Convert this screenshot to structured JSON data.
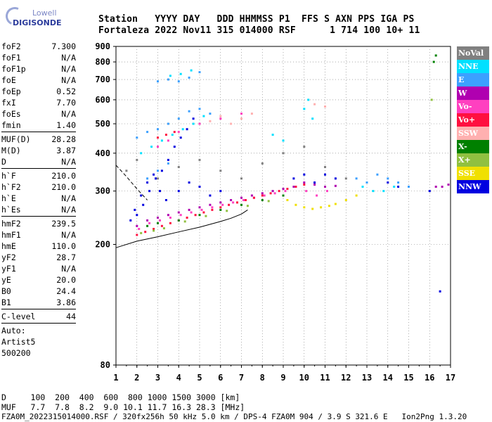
{
  "logo": {
    "line1": "Lowell",
    "line2": "DIGISONDE"
  },
  "header": {
    "line1": "Station   YYYY DAY   DDD HHMMSS P1  FFS S AXN PPS IGA PS",
    "line2": "Fortaleza 2022 Nov11 315 014000 RSF      1 714 100 10+ 11"
  },
  "params": {
    "group1": [
      {
        "k": "foF2",
        "v": "7.300"
      },
      {
        "k": "foF1",
        "v": "N/A"
      },
      {
        "k": "foF1p",
        "v": "N/A"
      },
      {
        "k": "foE",
        "v": "N/A"
      },
      {
        "k": "foEp",
        "v": "0.52"
      },
      {
        "k": "fxI",
        "v": "7.70"
      },
      {
        "k": "foEs",
        "v": "N/A"
      },
      {
        "k": "fmin",
        "v": "1.40"
      }
    ],
    "group2": [
      {
        "k": "MUF(D)",
        "v": "28.28"
      },
      {
        "k": "M(D)",
        "v": "3.87"
      },
      {
        "k": "D",
        "v": "N/A"
      }
    ],
    "group3": [
      {
        "k": "h`F",
        "v": "210.0"
      },
      {
        "k": "h`F2",
        "v": "210.0"
      },
      {
        "k": "h`E",
        "v": "N/A"
      },
      {
        "k": "h`Es",
        "v": "N/A"
      }
    ],
    "group4": [
      {
        "k": "hmF2",
        "v": "239.5"
      },
      {
        "k": "hmF1",
        "v": "N/A"
      },
      {
        "k": "hmE",
        "v": "110.0"
      },
      {
        "k": "yF2",
        "v": "28.7"
      },
      {
        "k": "yF1",
        "v": "N/A"
      },
      {
        "k": "yE",
        "v": "20.0"
      },
      {
        "k": "B0",
        "v": "24.4"
      },
      {
        "k": "B1",
        "v": "3.86"
      }
    ],
    "group5": [
      {
        "k": "C-level",
        "v": "44"
      }
    ],
    "auto_label": "Auto:",
    "artist": "Artist5",
    "code": "500200"
  },
  "footer": {
    "d_row": "D     100  200  400  600  800 1000 1500 3000 [km]",
    "muf_row": "MUF   7.7  7.8  8.2  9.0 10.1 11.7 16.3 28.3 [MHz]",
    "file_row": "FZA0M_2022315014000.RSF / 320fx256h 50 kHz 5.0 km / DPS-4 FZA0M 904 / 3.9 S 321.6 E   Ion2Png 1.3.20"
  },
  "legend": [
    {
      "label": "NoVal",
      "color": "#808080"
    },
    {
      "label": "NNE",
      "color": "#00e0ff"
    },
    {
      "label": "E",
      "color": "#3ca0ff"
    },
    {
      "label": "W",
      "color": "#b000b0"
    },
    {
      "label": "Vo-",
      "color": "#ff40c0"
    },
    {
      "label": "Vo+",
      "color": "#ff1040"
    },
    {
      "label": "SSW",
      "color": "#ffb0b0"
    },
    {
      "label": "X-",
      "color": "#008000"
    },
    {
      "label": "X+",
      "color": "#90c040"
    },
    {
      "label": "SSE",
      "color": "#f0e000"
    },
    {
      "label": "NNW",
      "color": "#0000e0"
    }
  ],
  "chart_data": {
    "type": "scatter",
    "title": "",
    "xlabel": "",
    "ylabel": "",
    "xlim": [
      1,
      17
    ],
    "ylim": [
      80,
      900
    ],
    "yscale": "log",
    "xticks": [
      "1",
      "2",
      "3",
      "4",
      "5",
      "6",
      "7",
      "8",
      "9",
      "10",
      "11",
      "12",
      "13",
      "14",
      "15",
      "16",
      "17"
    ],
    "yticks": [
      80,
      200,
      300,
      400,
      500,
      600,
      700,
      800,
      900
    ],
    "grid": true,
    "legend_position": "right",
    "profile": {
      "x": [
        1.0,
        2.0,
        3.0,
        4.0,
        5.0,
        6.0,
        6.5,
        7.0,
        7.3
      ],
      "y": [
        195,
        205,
        212,
        220,
        228,
        238,
        244,
        252,
        260
      ]
    },
    "profile_dashed": {
      "x": [
        1.0,
        1.5,
        2.0,
        2.5
      ],
      "y": [
        365,
        335,
        305,
        280
      ]
    },
    "series": [
      {
        "name": "NNW",
        "points": [
          [
            1.7,
            240
          ],
          [
            2.0,
            250
          ],
          [
            2.3,
            270
          ],
          [
            2.6,
            300
          ],
          [
            2.9,
            330
          ],
          [
            3.2,
            350
          ],
          [
            3.5,
            380
          ],
          [
            3.8,
            420
          ],
          [
            4.1,
            450
          ],
          [
            4.4,
            480
          ],
          [
            4.7,
            520
          ],
          [
            1.9,
            260
          ],
          [
            2.2,
            290
          ],
          [
            2.5,
            320
          ],
          [
            2.8,
            340
          ],
          [
            3.1,
            300
          ],
          [
            3.4,
            280
          ],
          [
            4.0,
            300
          ],
          [
            4.5,
            320
          ],
          [
            5.0,
            310
          ],
          [
            5.5,
            290
          ],
          [
            6.0,
            300
          ],
          [
            9.5,
            330
          ],
          [
            10.0,
            340
          ],
          [
            10.5,
            320
          ],
          [
            11.0,
            340
          ],
          [
            11.5,
            330
          ],
          [
            14.0,
            320
          ],
          [
            14.5,
            310
          ],
          [
            16.0,
            300
          ],
          [
            16.5,
            140
          ]
        ]
      },
      {
        "name": "E",
        "points": [
          [
            2.0,
            450
          ],
          [
            2.5,
            470
          ],
          [
            3.0,
            480
          ],
          [
            3.5,
            500
          ],
          [
            4.0,
            520
          ],
          [
            4.5,
            550
          ],
          [
            5.0,
            560
          ],
          [
            5.5,
            540
          ],
          [
            3.0,
            690
          ],
          [
            3.5,
            700
          ],
          [
            4.0,
            690
          ],
          [
            4.5,
            710
          ],
          [
            5.0,
            740
          ],
          [
            2.5,
            330
          ],
          [
            3.0,
            350
          ],
          [
            3.5,
            370
          ],
          [
            12.5,
            330
          ],
          [
            13.0,
            320
          ],
          [
            13.5,
            340
          ],
          [
            14.0,
            330
          ],
          [
            14.5,
            320
          ],
          [
            15.0,
            310
          ]
        ]
      },
      {
        "name": "NNE",
        "points": [
          [
            2.2,
            400
          ],
          [
            2.7,
            420
          ],
          [
            3.2,
            440
          ],
          [
            3.7,
            460
          ],
          [
            4.2,
            480
          ],
          [
            4.7,
            500
          ],
          [
            5.2,
            530
          ],
          [
            3.6,
            720
          ],
          [
            4.1,
            730
          ],
          [
            4.6,
            750
          ],
          [
            10.0,
            560
          ],
          [
            10.2,
            600
          ],
          [
            10.4,
            520
          ],
          [
            8.5,
            460
          ],
          [
            9.0,
            440
          ],
          [
            12.8,
            310
          ],
          [
            13.3,
            300
          ],
          [
            13.8,
            300
          ],
          [
            14.3,
            310
          ]
        ]
      },
      {
        "name": "W",
        "points": [
          [
            2.0,
            230
          ],
          [
            2.5,
            240
          ],
          [
            3.0,
            245
          ],
          [
            3.5,
            250
          ],
          [
            4.0,
            255
          ],
          [
            4.5,
            260
          ],
          [
            5.0,
            265
          ],
          [
            5.5,
            270
          ],
          [
            6.0,
            275
          ],
          [
            6.5,
            280
          ],
          [
            7.0,
            285
          ],
          [
            7.5,
            290
          ],
          [
            8.0,
            295
          ],
          [
            8.5,
            300
          ],
          [
            9.0,
            305
          ],
          [
            9.5,
            310
          ],
          [
            10.0,
            320
          ],
          [
            10.5,
            315
          ],
          [
            11.0,
            310
          ],
          [
            11.5,
            312
          ],
          [
            16.3,
            310
          ],
          [
            16.6,
            310
          ],
          [
            16.9,
            315
          ]
        ]
      },
      {
        "name": "Vo-",
        "points": [
          [
            2.1,
            225
          ],
          [
            2.6,
            235
          ],
          [
            3.1,
            240
          ],
          [
            3.6,
            245
          ],
          [
            4.1,
            250
          ],
          [
            4.6,
            255
          ],
          [
            5.1,
            260
          ],
          [
            5.6,
            265
          ],
          [
            6.1,
            270
          ],
          [
            6.6,
            275
          ],
          [
            7.1,
            280
          ],
          [
            7.6,
            285
          ],
          [
            8.1,
            290
          ],
          [
            8.6,
            295
          ],
          [
            9.1,
            300
          ],
          [
            9.6,
            310
          ],
          [
            10.1,
            300
          ],
          [
            10.6,
            290
          ],
          [
            11.1,
            300
          ],
          [
            3.0,
            420
          ],
          [
            3.5,
            440
          ],
          [
            4.0,
            470
          ],
          [
            5.0,
            500
          ],
          [
            6.0,
            520
          ],
          [
            7.0,
            540
          ]
        ]
      },
      {
        "name": "Vo+",
        "points": [
          [
            2.0,
            215
          ],
          [
            2.4,
            220
          ],
          [
            2.8,
            225
          ],
          [
            3.2,
            230
          ],
          [
            3.6,
            235
          ],
          [
            4.0,
            240
          ],
          [
            4.4,
            245
          ],
          [
            4.8,
            250
          ],
          [
            5.2,
            255
          ],
          [
            5.6,
            260
          ],
          [
            6.0,
            265
          ],
          [
            6.4,
            270
          ],
          [
            6.8,
            275
          ],
          [
            7.2,
            280
          ],
          [
            7.6,
            285
          ],
          [
            8.0,
            290
          ],
          [
            8.4,
            295
          ],
          [
            8.8,
            300
          ],
          [
            9.2,
            305
          ],
          [
            9.6,
            310
          ],
          [
            10.0,
            315
          ],
          [
            3.0,
            450
          ],
          [
            3.4,
            460
          ],
          [
            3.8,
            470
          ]
        ]
      },
      {
        "name": "SSW",
        "points": [
          [
            6.5,
            500
          ],
          [
            7.0,
            520
          ],
          [
            7.5,
            540
          ],
          [
            6.0,
            530
          ],
          [
            5.5,
            510
          ],
          [
            10.5,
            580
          ],
          [
            11.0,
            570
          ]
        ]
      },
      {
        "name": "X-",
        "points": [
          [
            2.5,
            230
          ],
          [
            3.0,
            235
          ],
          [
            4.0,
            240
          ],
          [
            5.0,
            250
          ],
          [
            6.0,
            260
          ],
          [
            7.0,
            270
          ],
          [
            8.0,
            280
          ],
          [
            9.0,
            290
          ],
          [
            16.2,
            800
          ],
          [
            16.3,
            840
          ]
        ]
      },
      {
        "name": "X+",
        "points": [
          [
            2.2,
            218
          ],
          [
            2.8,
            222
          ],
          [
            3.3,
            226
          ],
          [
            4.3,
            238
          ],
          [
            5.3,
            248
          ],
          [
            6.3,
            258
          ],
          [
            7.3,
            268
          ],
          [
            8.3,
            278
          ],
          [
            16.1,
            600
          ]
        ]
      },
      {
        "name": "SSE",
        "points": [
          [
            9.2,
            280
          ],
          [
            9.6,
            270
          ],
          [
            10.0,
            265
          ],
          [
            10.4,
            262
          ],
          [
            10.8,
            265
          ],
          [
            11.2,
            268
          ],
          [
            11.5,
            272
          ],
          [
            12.0,
            280
          ],
          [
            12.5,
            290
          ]
        ]
      },
      {
        "name": "NoVal",
        "points": [
          [
            1.5,
            350
          ],
          [
            2.0,
            380
          ],
          [
            3.0,
            330
          ],
          [
            4.0,
            360
          ],
          [
            5.0,
            380
          ],
          [
            6.0,
            350
          ],
          [
            7.0,
            330
          ],
          [
            8.0,
            370
          ],
          [
            9.0,
            400
          ],
          [
            10.0,
            420
          ],
          [
            11.0,
            360
          ],
          [
            12.0,
            330
          ]
        ]
      }
    ]
  }
}
